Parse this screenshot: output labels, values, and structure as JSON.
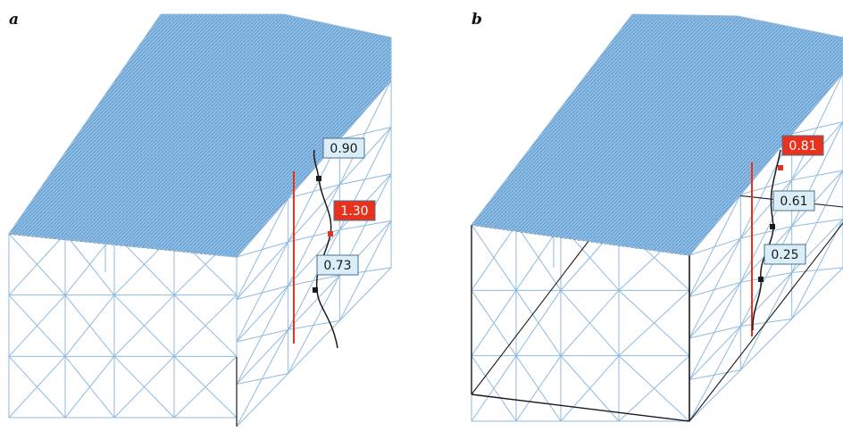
{
  "colors": {
    "frame": "#8fbadf",
    "roof": "#8cbde6",
    "roof_hatch": "#5f93c4",
    "edge": "#1a1a1a",
    "highlight": "#e8321e",
    "label_bg": "#daeef8",
    "label_highlight_bg": "#e8321e"
  },
  "panels": [
    {
      "letter": "a",
      "labels": [
        {
          "text": "0.90",
          "highlight": false
        },
        {
          "text": "1.30",
          "highlight": true
        },
        {
          "text": "0.73",
          "highlight": false
        }
      ]
    },
    {
      "letter": "b",
      "labels": [
        {
          "text": "0.81",
          "highlight": true
        },
        {
          "text": "0.61",
          "highlight": false
        },
        {
          "text": "0.25",
          "highlight": false
        }
      ]
    }
  ]
}
